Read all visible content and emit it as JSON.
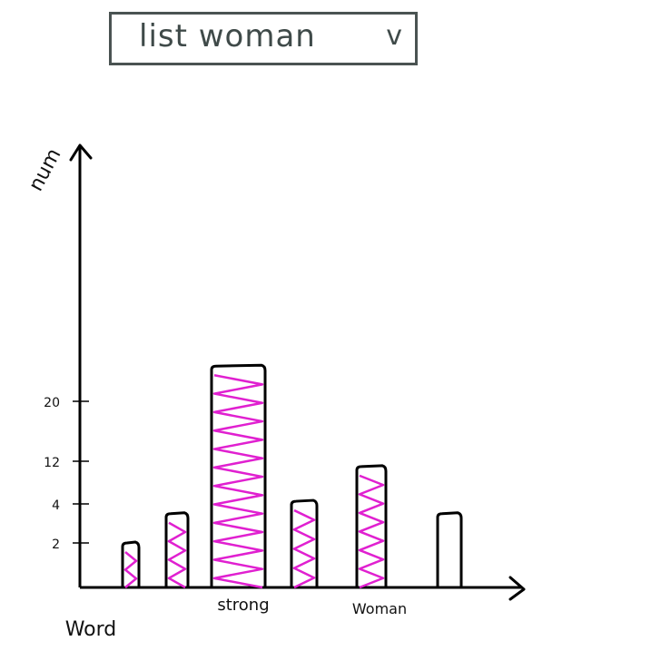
{
  "dropdown": {
    "selected": "list woman",
    "caret": "v"
  },
  "colors": {
    "axis": "#000000",
    "bar_outline": "#000000",
    "fill_scribble": "#e020d0",
    "fill_scribble_dark": "#8a22c8",
    "dropdown_border": "#4a5352"
  },
  "chart_data": {
    "type": "bar",
    "ylabel": "num",
    "yticks": [
      2,
      4,
      12,
      20
    ],
    "bars": [
      {
        "label": "Word",
        "value": 2,
        "filled": true
      },
      {
        "label": "",
        "value": 3.5,
        "filled": true
      },
      {
        "label": "strong",
        "value": 25,
        "filled": true
      },
      {
        "label": "",
        "value": 4.5,
        "filled": true
      },
      {
        "label": "Woman",
        "value": 11,
        "filled": true
      },
      {
        "label": "",
        "value": 3.5,
        "filled": false
      }
    ],
    "grid": false
  }
}
